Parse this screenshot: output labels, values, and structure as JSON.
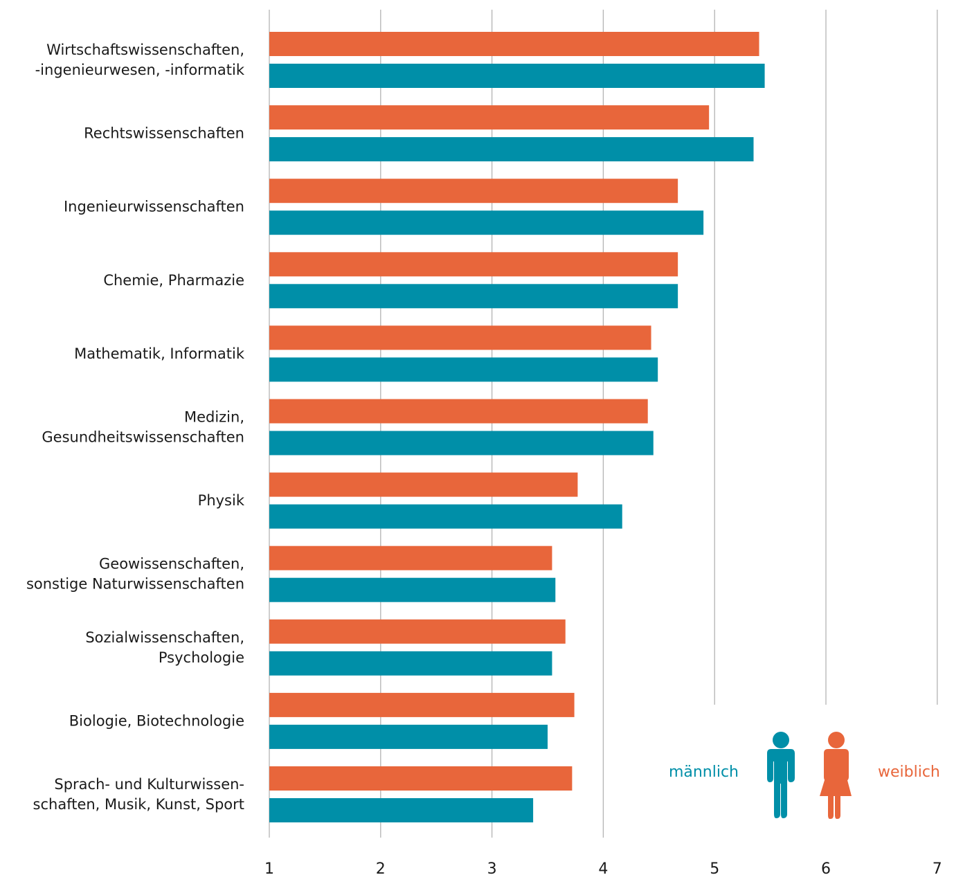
{
  "chart_data": {
    "type": "bar",
    "orientation": "horizontal",
    "categories": [
      [
        "Wirtschaftswissenschaften,",
        "-ingenieurwesen, -informatik"
      ],
      [
        "Rechtswissenschaften"
      ],
      [
        "Ingenieurwissenschaften"
      ],
      [
        "Chemie, Pharmazie"
      ],
      [
        "Mathematik, Informatik"
      ],
      [
        "Medizin,",
        "Gesundheitswissenschaften"
      ],
      [
        "Physik"
      ],
      [
        "Geowissenschaften,",
        "sonstige Naturwissenschaften"
      ],
      [
        "Sozialwissenschaften,",
        "Psychologie"
      ],
      [
        "Biologie, Biotechnologie"
      ],
      [
        "Sprach- und Kulturwissen-",
        "schaften, Musik, Kunst, Sport"
      ]
    ],
    "series": [
      {
        "name": "weiblich",
        "color": "#e8663b",
        "values": [
          5.4,
          4.95,
          4.67,
          4.67,
          4.43,
          4.4,
          3.77,
          3.54,
          3.66,
          3.74,
          3.72
        ]
      },
      {
        "name": "männlich",
        "color": "#008fa8",
        "values": [
          5.45,
          5.35,
          4.9,
          4.67,
          4.49,
          4.45,
          4.17,
          3.57,
          3.54,
          3.5,
          3.37
        ]
      }
    ],
    "xlim": [
      1,
      7
    ],
    "xticks": [
      "1",
      "2",
      "3",
      "4",
      "5",
      "6",
      "7"
    ],
    "grid": true,
    "title": "",
    "xlabel": "",
    "ylabel": ""
  },
  "legend": {
    "male_label": "männlich",
    "female_label": "weiblich",
    "male_icon": "male-person-icon",
    "female_icon": "female-person-icon",
    "placement": "bottom-right"
  },
  "colors": {
    "grid": "#b3b3b3",
    "text": "#1a1a1a"
  }
}
